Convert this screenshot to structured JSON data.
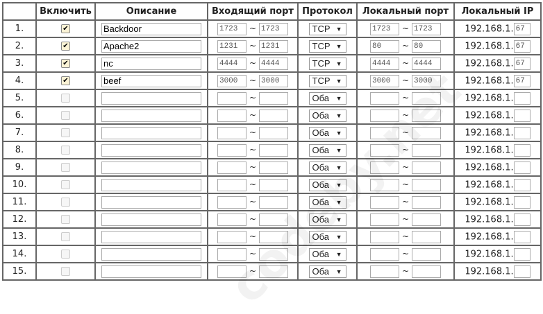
{
  "headers": [
    "",
    "Включить",
    "Описание",
    "Входящий порт",
    "Протокол",
    "Локальный порт",
    "Локальный IP"
  ],
  "ip_prefix": "192.168.1.",
  "tilde": "~",
  "watermark": "codeby.net",
  "rows": [
    {
      "num": "1.",
      "enabled": true,
      "desc": "Backdoor",
      "in_from": "1723",
      "in_to": "1723",
      "proto": "TCP",
      "loc_from": "1723",
      "loc_to": "1723",
      "ip": "67"
    },
    {
      "num": "2.",
      "enabled": true,
      "desc": "Apache2",
      "in_from": "1231",
      "in_to": "1231",
      "proto": "TCP",
      "loc_from": "80",
      "loc_to": "80",
      "ip": "67"
    },
    {
      "num": "3.",
      "enabled": true,
      "desc": "nc",
      "in_from": "4444",
      "in_to": "4444",
      "proto": "TCP",
      "loc_from": "4444",
      "loc_to": "4444",
      "ip": "67"
    },
    {
      "num": "4.",
      "enabled": true,
      "desc": "beef",
      "in_from": "3000",
      "in_to": "3000",
      "proto": "TCP",
      "loc_from": "3000",
      "loc_to": "3000",
      "ip": "67"
    },
    {
      "num": "5.",
      "enabled": false,
      "desc": "",
      "in_from": "",
      "in_to": "",
      "proto": "Оба",
      "loc_from": "",
      "loc_to": "",
      "ip": ""
    },
    {
      "num": "6.",
      "enabled": false,
      "desc": "",
      "in_from": "",
      "in_to": "",
      "proto": "Оба",
      "loc_from": "",
      "loc_to": "",
      "ip": ""
    },
    {
      "num": "7.",
      "enabled": false,
      "desc": "",
      "in_from": "",
      "in_to": "",
      "proto": "Оба",
      "loc_from": "",
      "loc_to": "",
      "ip": ""
    },
    {
      "num": "8.",
      "enabled": false,
      "desc": "",
      "in_from": "",
      "in_to": "",
      "proto": "Оба",
      "loc_from": "",
      "loc_to": "",
      "ip": ""
    },
    {
      "num": "9.",
      "enabled": false,
      "desc": "",
      "in_from": "",
      "in_to": "",
      "proto": "Оба",
      "loc_from": "",
      "loc_to": "",
      "ip": ""
    },
    {
      "num": "10.",
      "enabled": false,
      "desc": "",
      "in_from": "",
      "in_to": "",
      "proto": "Оба",
      "loc_from": "",
      "loc_to": "",
      "ip": ""
    },
    {
      "num": "11.",
      "enabled": false,
      "desc": "",
      "in_from": "",
      "in_to": "",
      "proto": "Оба",
      "loc_from": "",
      "loc_to": "",
      "ip": ""
    },
    {
      "num": "12.",
      "enabled": false,
      "desc": "",
      "in_from": "",
      "in_to": "",
      "proto": "Оба",
      "loc_from": "",
      "loc_to": "",
      "ip": ""
    },
    {
      "num": "13.",
      "enabled": false,
      "desc": "",
      "in_from": "",
      "in_to": "",
      "proto": "Оба",
      "loc_from": "",
      "loc_to": "",
      "ip": ""
    },
    {
      "num": "14.",
      "enabled": false,
      "desc": "",
      "in_from": "",
      "in_to": "",
      "proto": "Оба",
      "loc_from": "",
      "loc_to": "",
      "ip": ""
    },
    {
      "num": "15.",
      "enabled": false,
      "desc": "",
      "in_from": "",
      "in_to": "",
      "proto": "Оба",
      "loc_from": "",
      "loc_to": "",
      "ip": ""
    }
  ]
}
